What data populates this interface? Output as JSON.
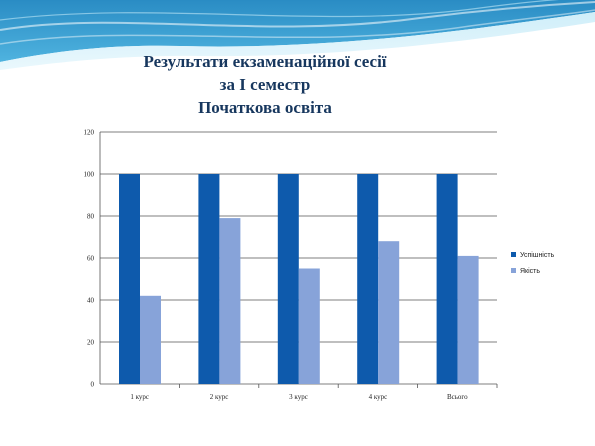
{
  "slide": {
    "title_lines": [
      "Результати екзаменаційної сесії",
      "за І семестр",
      "Початкова освіта"
    ]
  },
  "colors": {
    "series_1": "#0e5aac",
    "series_2": "#87a3d9",
    "title": "#17375e",
    "wave_dark": "#1f7fb8",
    "wave_light": "#9fd8ef"
  },
  "chart_data": {
    "type": "bar",
    "categories": [
      "1 курс",
      "2 курс",
      "3 курс",
      "4 курс",
      "Всього"
    ],
    "series": [
      {
        "name": "Успішність",
        "values": [
          100,
          100,
          100,
          100,
          100
        ]
      },
      {
        "name": "Якість",
        "values": [
          42,
          79,
          55,
          68,
          61
        ]
      }
    ],
    "y_ticks": [
      "0",
      "20",
      "40",
      "60",
      "80",
      "100",
      "120"
    ],
    "ylim": [
      0,
      120
    ],
    "grid": true,
    "legend_position": "right"
  }
}
